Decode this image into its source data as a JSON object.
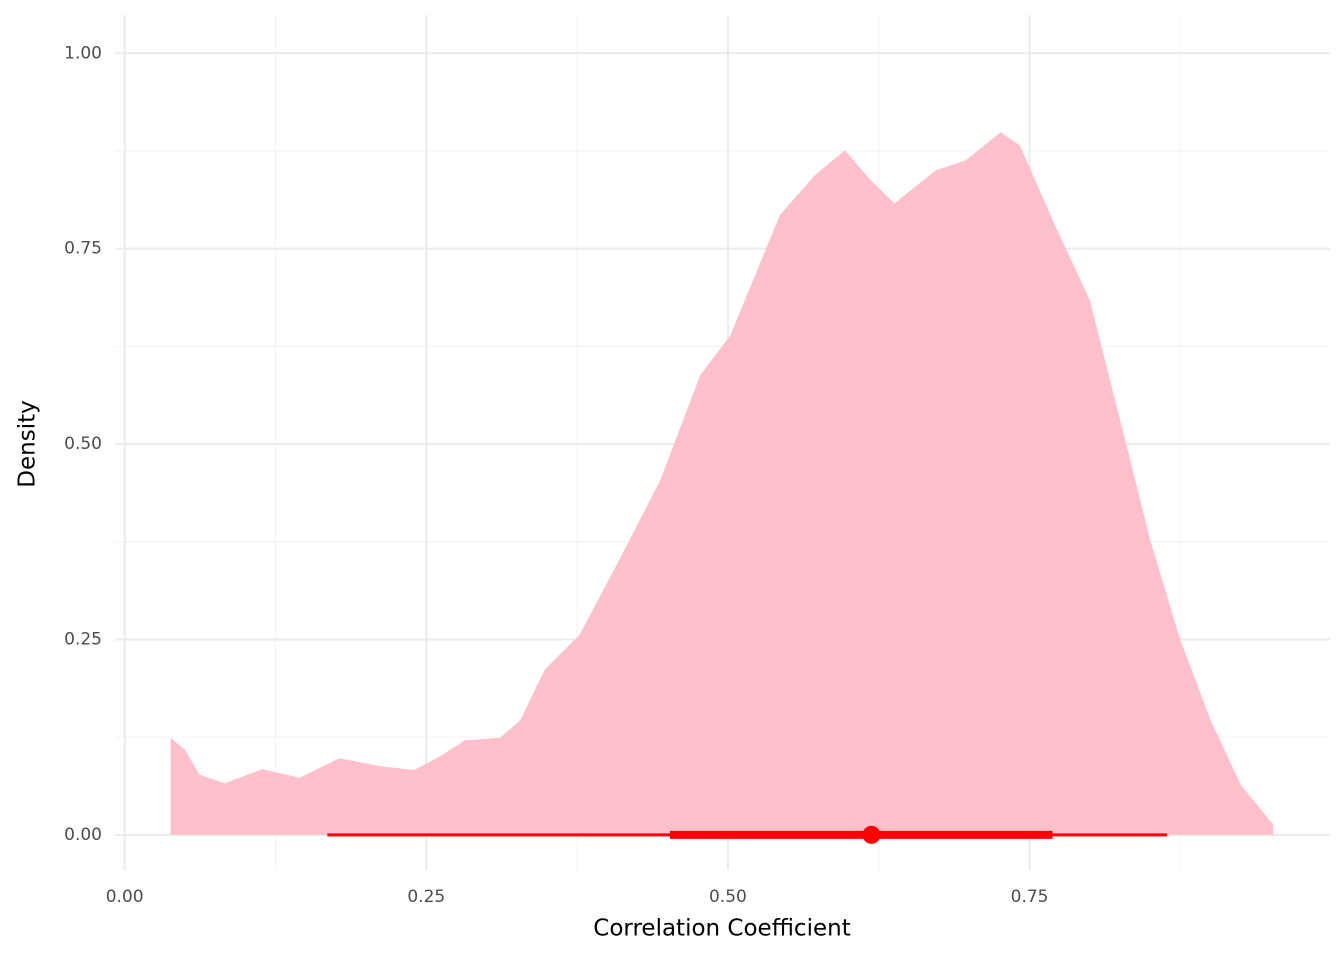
{
  "chart_data": {
    "type": "density",
    "x_label": "Correlation Coefficient",
    "y_label": "Density",
    "x": [
      0.038,
      0.05,
      0.062,
      0.083,
      0.114,
      0.145,
      0.178,
      0.211,
      0.24,
      0.261,
      0.282,
      0.311,
      0.328,
      0.348,
      0.377,
      0.41,
      0.444,
      0.477,
      0.502,
      0.543,
      0.572,
      0.597,
      0.618,
      0.638,
      0.672,
      0.697,
      0.726,
      0.742,
      0.771,
      0.8,
      0.825,
      0.85,
      0.875,
      0.9,
      0.925,
      0.952
    ],
    "values": [
      0.124,
      0.109,
      0.077,
      0.066,
      0.084,
      0.073,
      0.098,
      0.088,
      0.083,
      0.1,
      0.121,
      0.124,
      0.147,
      0.211,
      0.256,
      0.352,
      0.454,
      0.588,
      0.639,
      0.793,
      0.844,
      0.876,
      0.838,
      0.808,
      0.85,
      0.863,
      0.899,
      0.882,
      0.78,
      0.684,
      0.531,
      0.377,
      0.249,
      0.147,
      0.064,
      0.013
    ],
    "color": "#ffc0cb",
    "point_interval": {
      "point": 0.619,
      "inner": [
        0.452,
        0.769
      ],
      "outer": [
        0.168,
        0.864
      ],
      "color": "#ff0000"
    },
    "xlim": [
      -0.008,
      0.999
    ],
    "ylim": [
      -0.045,
      1.049
    ],
    "xticks": [
      {
        "value": 0,
        "label": "0.00"
      },
      {
        "value": 0.25,
        "label": "0.25"
      },
      {
        "value": 0.5,
        "label": "0.50"
      },
      {
        "value": 0.75,
        "label": "0.75"
      }
    ],
    "yticks": [
      {
        "value": 0,
        "label": "0.00"
      },
      {
        "value": 0.25,
        "label": "0.25"
      },
      {
        "value": 0.5,
        "label": "0.50"
      },
      {
        "value": 0.75,
        "label": "0.75"
      },
      {
        "value": 1,
        "label": "1.00"
      }
    ],
    "xminor": [
      0.125,
      0.375,
      0.625,
      0.875
    ],
    "yminor": [
      0.125,
      0.375,
      0.625,
      0.875
    ],
    "grid": true
  }
}
